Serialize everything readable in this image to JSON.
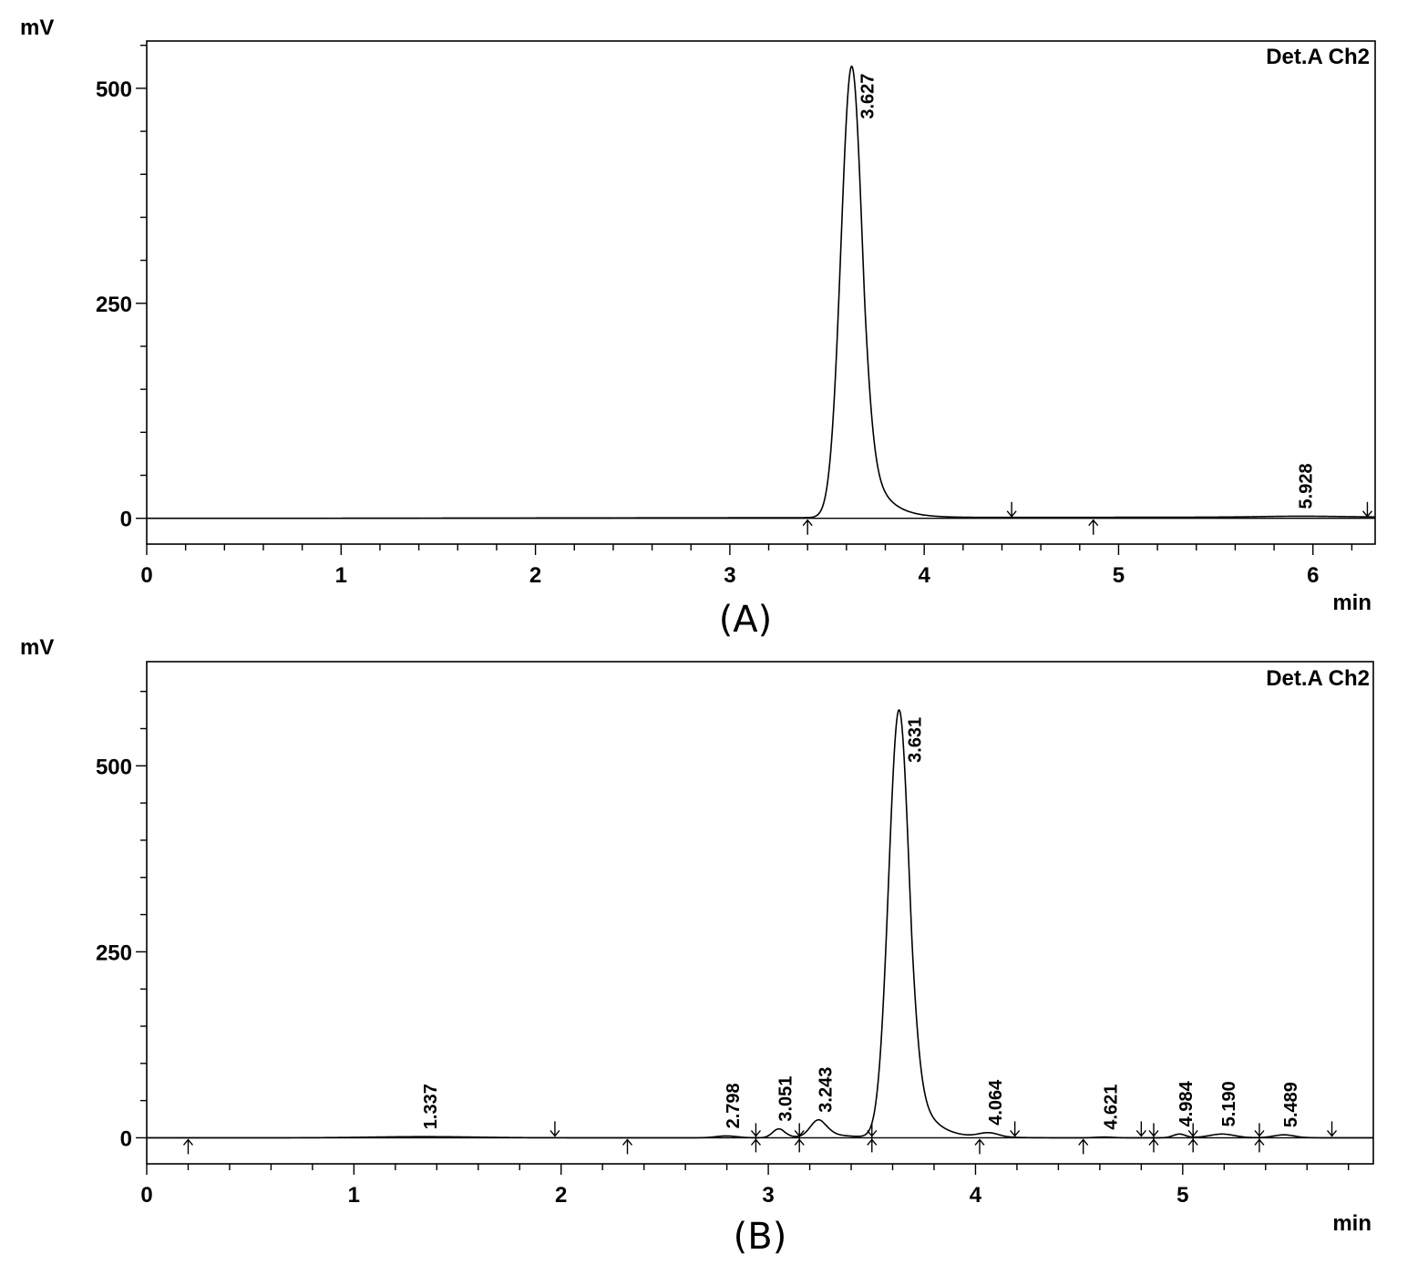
{
  "chart_data": [
    {
      "type": "line",
      "panel_caption": "(A)",
      "channel": "Det.A Ch2",
      "xlabel": "min",
      "ylabel": "mV",
      "xlim": [
        0,
        6.32
      ],
      "ylim": [
        -30,
        555
      ],
      "x_ticks": [
        0,
        1,
        2,
        3,
        4,
        5,
        6
      ],
      "y_ticks": [
        0,
        250,
        500
      ],
      "peaks": [
        {
          "rt": 3.627,
          "label": "3.627",
          "height": 525,
          "sigma_left": 0.055,
          "tau": 0.09
        },
        {
          "rt": 5.928,
          "label": "5.928",
          "height": 1,
          "sigma_left": 0.2,
          "tau": 0.2
        }
      ],
      "baseline_offsets": [
        [
          0,
          0
        ],
        [
          0.7,
          0
        ],
        [
          6.32,
          1.5
        ]
      ],
      "integration_markers": [
        {
          "x": 3.4,
          "dir": "up"
        },
        {
          "x": 4.45,
          "dir": "down"
        },
        {
          "x": 4.87,
          "dir": "up"
        },
        {
          "x": 6.28,
          "dir": "down"
        }
      ]
    },
    {
      "type": "line",
      "panel_caption": "(B)",
      "channel": "Det.A Ch2",
      "xlabel": "min",
      "ylabel": "mV",
      "xlim": [
        0,
        5.92
      ],
      "ylim": [
        -35,
        640
      ],
      "x_ticks": [
        0,
        1,
        2,
        3,
        4,
        5
      ],
      "y_ticks": [
        0,
        250,
        500
      ],
      "peaks": [
        {
          "rt": 1.337,
          "label": "1.337",
          "height": 1.5,
          "sigma_left": 0.25,
          "tau": 0.25
        },
        {
          "rt": 2.798,
          "label": "2.798",
          "height": 2.5,
          "sigma_left": 0.05,
          "tau": 0.05
        },
        {
          "rt": 3.051,
          "label": "3.051",
          "height": 12,
          "sigma_left": 0.03,
          "tau": 0.06
        },
        {
          "rt": 3.243,
          "label": "3.243",
          "height": 24,
          "sigma_left": 0.04,
          "tau": 0.12
        },
        {
          "rt": 3.631,
          "label": "3.631",
          "height": 575,
          "sigma_left": 0.05,
          "tau": 0.08
        },
        {
          "rt": 4.064,
          "label": "4.064",
          "height": 6,
          "sigma_left": 0.05,
          "tau": 0.07
        },
        {
          "rt": 4.621,
          "label": "4.621",
          "height": 1,
          "sigma_left": 0.04,
          "tau": 0.04
        },
        {
          "rt": 4.984,
          "label": "4.984",
          "height": 5,
          "sigma_left": 0.03,
          "tau": 0.04
        },
        {
          "rt": 5.19,
          "label": "5.190",
          "height": 5,
          "sigma_left": 0.06,
          "tau": 0.06
        },
        {
          "rt": 5.489,
          "label": "5.489",
          "height": 4,
          "sigma_left": 0.05,
          "tau": 0.05
        }
      ],
      "baseline_offsets": [
        [
          0,
          0
        ],
        [
          5.92,
          0
        ]
      ],
      "integration_markers": [
        {
          "x": 0.2,
          "dir": "up"
        },
        {
          "x": 1.97,
          "dir": "down"
        },
        {
          "x": 2.32,
          "dir": "up"
        },
        {
          "x": 2.94,
          "dir": "cross"
        },
        {
          "x": 3.15,
          "dir": "cross"
        },
        {
          "x": 3.5,
          "dir": "cross"
        },
        {
          "x": 4.02,
          "dir": "up"
        },
        {
          "x": 4.19,
          "dir": "down"
        },
        {
          "x": 4.52,
          "dir": "up"
        },
        {
          "x": 4.8,
          "dir": "down"
        },
        {
          "x": 4.86,
          "dir": "cross"
        },
        {
          "x": 5.05,
          "dir": "cross"
        },
        {
          "x": 5.37,
          "dir": "cross"
        },
        {
          "x": 5.72,
          "dir": "down"
        }
      ]
    }
  ]
}
